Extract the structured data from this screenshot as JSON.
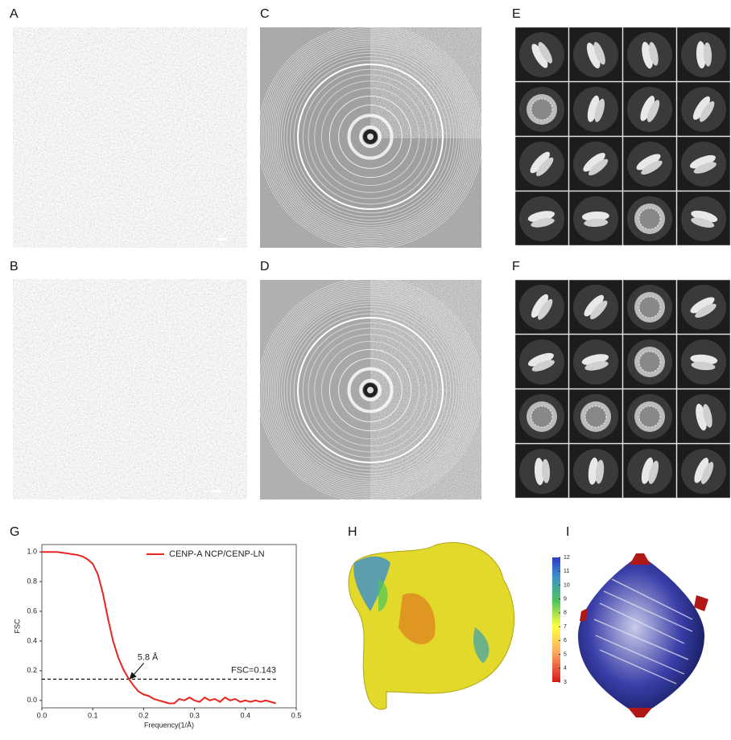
{
  "panel_labels": [
    "A",
    "B",
    "C",
    "D",
    "E",
    "F",
    "G",
    "H",
    "I"
  ],
  "chart_data": {
    "type": "line",
    "x_label": "Frequency(1/Å)",
    "y_label": "FSC",
    "x": [
      0,
      0.01,
      0.02,
      0.03,
      0.04,
      0.05,
      0.06,
      0.07,
      0.08,
      0.09,
      0.1,
      0.11,
      0.12,
      0.13,
      0.14,
      0.15,
      0.16,
      0.17,
      0.18,
      0.19,
      0.2,
      0.21,
      0.22,
      0.23,
      0.24,
      0.25,
      0.26,
      0.27,
      0.28,
      0.29,
      0.3,
      0.31,
      0.32,
      0.33,
      0.34,
      0.35,
      0.36,
      0.37,
      0.38,
      0.39,
      0.4,
      0.41,
      0.42,
      0.43,
      0.44,
      0.45,
      0.46
    ],
    "series": [
      {
        "name": "CENP-A NCP/CENP-LN",
        "color": "#e8251f",
        "values": [
          1.0,
          1.0,
          1.0,
          1.0,
          0.995,
          0.99,
          0.985,
          0.98,
          0.97,
          0.95,
          0.92,
          0.85,
          0.72,
          0.55,
          0.4,
          0.29,
          0.21,
          0.15,
          0.1,
          0.06,
          0.04,
          0.03,
          0.01,
          0.0,
          -0.01,
          -0.02,
          -0.02,
          0.01,
          0.0,
          0.02,
          0.0,
          -0.01,
          0.02,
          0.0,
          0.01,
          -0.01,
          0.02,
          0.0,
          0.01,
          -0.01,
          0.0,
          -0.01,
          0.0,
          -0.01,
          0.0,
          -0.01,
          -0.02
        ]
      }
    ],
    "threshold": {
      "value": 0.143,
      "label": "FSC=0.143"
    },
    "annotation": {
      "text": "5.8 Å",
      "x": 0.172,
      "y": 0.143
    },
    "xlim": [
      0,
      0.5
    ],
    "ylim": [
      -0.05,
      1.05
    ],
    "xticks": [
      {
        "value": 0,
        "label": "0.0"
      },
      0.1,
      0.2,
      0.3,
      0.4,
      0.5
    ],
    "yticks": [
      {
        "value": 0,
        "label": "0.0"
      },
      0.2,
      0.4,
      0.6,
      0.8,
      {
        "value": 1,
        "label": "1.0"
      }
    ],
    "legend": "upper right"
  },
  "colorbar": {
    "range": [
      3,
      12
    ],
    "ticks": [
      3,
      4,
      5,
      6,
      7,
      8,
      9,
      10,
      11,
      12
    ]
  }
}
